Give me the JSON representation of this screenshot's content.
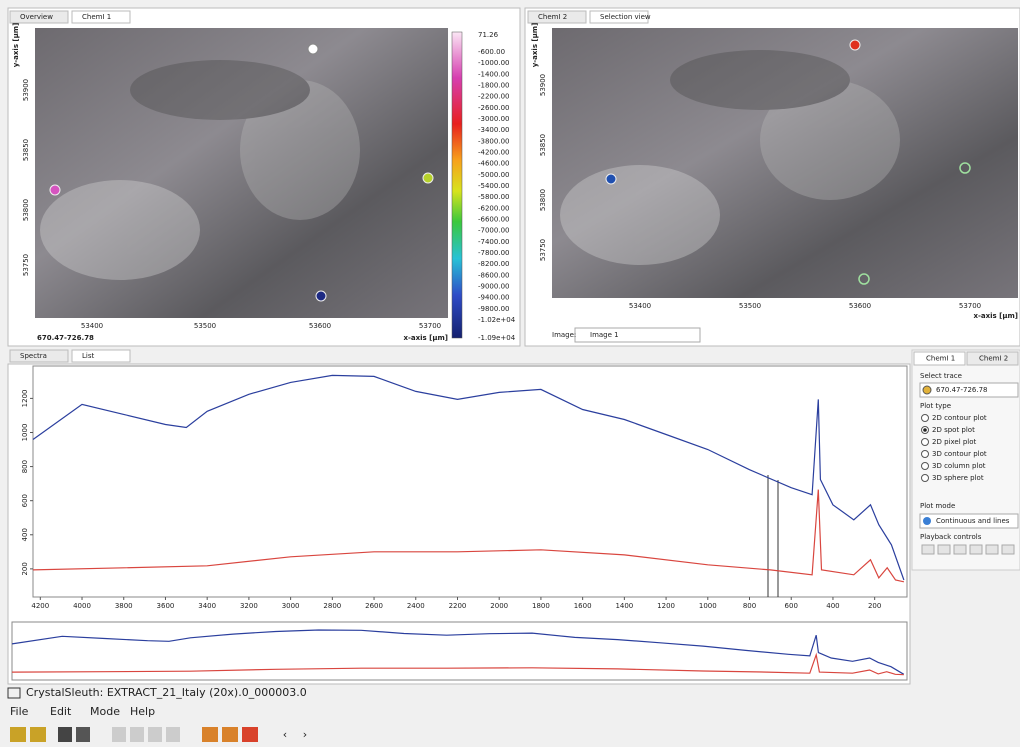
{
  "left_panel": {
    "tabs": [
      "Overview",
      "ChemI 1"
    ],
    "y_axis_label": "y-axis [µm]",
    "y_ticks": [
      "53900",
      "53850",
      "53800",
      "53750"
    ],
    "x_ticks": [
      "53400",
      "53500",
      "53600",
      "53700"
    ],
    "trace_label": "670.47-726.78",
    "x_axis_label": "x-axis [µm]",
    "colorbar_labels": [
      "71.26",
      "-600.00",
      "-1000.00",
      "-1400.00",
      "-1800.00",
      "-2200.00",
      "-2600.00",
      "-3000.00",
      "-3400.00",
      "-3800.00",
      "-4200.00",
      "-4600.00",
      "-5000.00",
      "-5400.00",
      "-5800.00",
      "-6200.00",
      "-6600.00",
      "-7000.00",
      "-7400.00",
      "-7800.00",
      "-8200.00",
      "-8600.00",
      "-9000.00",
      "-9400.00",
      "-9800.00",
      "-1.02e+04",
      "-1.09e+04"
    ]
  },
  "right_panel": {
    "tabs": [
      "ChemI 2",
      "Selection view"
    ],
    "y_axis_label": "y-axis [µm]",
    "y_ticks": [
      "53900",
      "53850",
      "53800",
      "53750"
    ],
    "x_ticks": [
      "53400",
      "53500",
      "53600",
      "53700"
    ],
    "x_axis_label": "x-axis [µm]",
    "image_label": "Image:",
    "image_value": "Image 1"
  },
  "spectra": {
    "tabs": [
      "Spectra",
      "List"
    ],
    "xlim": [
      4235,
      45
    ],
    "ylim": [
      35,
      1390
    ],
    "xticks": [
      4200,
      4000,
      3800,
      3600,
      3400,
      3200,
      3000,
      2800,
      2600,
      2400,
      2200,
      2000,
      1800,
      1600,
      1400,
      1200,
      1000,
      800,
      600,
      400,
      200
    ],
    "yticks": [
      200,
      400,
      600,
      800,
      1000,
      1200
    ],
    "series": [
      {
        "color": "#2b3f9e",
        "x": [
          4235,
          4000,
          3800,
          3600,
          3500,
          3400,
          3200,
          3000,
          2800,
          2600,
          2400,
          2200,
          2000,
          1800,
          1600,
          1400,
          1200,
          1000,
          800,
          600,
          500,
          470,
          460,
          400,
          300,
          220,
          180,
          120,
          60
        ],
        "values": [
          959,
          1165,
          1106,
          1047,
          1029,
          1124,
          1224,
          1294,
          1335,
          1329,
          1241,
          1194,
          1235,
          1253,
          1135,
          1076,
          988,
          900,
          782,
          676,
          635,
          1194,
          724,
          576,
          488,
          576,
          459,
          341,
          135
        ]
      },
      {
        "color": "#d9463f",
        "x": [
          4235,
          3800,
          3400,
          3000,
          2600,
          2200,
          1800,
          1400,
          1000,
          700,
          500,
          470,
          455,
          300,
          220,
          180,
          140,
          100,
          60
        ],
        "values": [
          194,
          206,
          218,
          271,
          300,
          300,
          312,
          282,
          224,
          194,
          165,
          665,
          194,
          165,
          253,
          147,
          206,
          135,
          124
        ]
      }
    ]
  },
  "side_panel": {
    "tabs": [
      "ChemI 1",
      "ChemI 2"
    ],
    "select_trace_label": "Select trace",
    "trace": "670.47-726.78",
    "plot_type_label": "Plot type",
    "plot_types": [
      "2D contour plot",
      "2D spot plot",
      "2D pixel plot",
      "3D contour plot",
      "3D column plot",
      "3D sphere plot"
    ],
    "selected_plot_type": 1,
    "plot_mode_label": "Plot mode",
    "plot_mode": "Continuous and lines",
    "playback_label": "Playback controls"
  },
  "window": {
    "title": "CrystalSleuth: EXTRACT_21_Italy (20x).0_000003.0",
    "menu": [
      "File",
      "Edit",
      "Mode",
      "Help"
    ]
  }
}
